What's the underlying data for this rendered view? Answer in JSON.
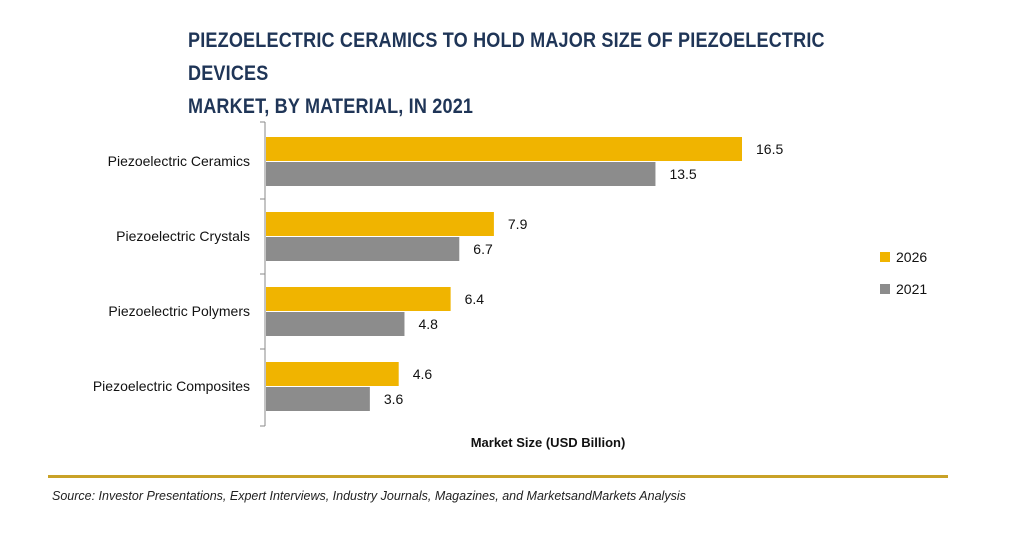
{
  "title_line1": "PIEZOELECTRIC CERAMICS TO HOLD MAJOR SIZE OF PIEZOELECTRIC DEVICES",
  "title_line2": "MARKET, BY MATERIAL, IN 2021",
  "source": "Source: Investor Presentations, Expert Interviews, Industry Journals, Magazines, and MarketsandMarkets Analysis",
  "colors": {
    "accent_2026": "#f0b400",
    "accent_2021": "#8c8c8c",
    "title": "#1f3557",
    "rule": "#c9a227"
  },
  "chart_data": {
    "type": "bar",
    "orientation": "horizontal",
    "title": "PIEZOELECTRIC CERAMICS TO HOLD MAJOR SIZE OF PIEZOELECTRIC DEVICES MARKET, BY MATERIAL, IN 2021",
    "xlabel": "Market Size (USD Billion)",
    "ylabel": "",
    "categories": [
      "Piezoelectric Ceramics",
      "Piezoelectric Crystals",
      "Piezoelectric Polymers",
      "Piezoelectric Composites"
    ],
    "series": [
      {
        "name": "2026",
        "color": "#f0b400",
        "values": [
          16.5,
          7.9,
          6.4,
          4.6
        ],
        "labels": [
          "16.5",
          "7.9",
          "6.4",
          "4.6"
        ]
      },
      {
        "name": "2021",
        "color": "#8c8c8c",
        "values": [
          13.5,
          6.7,
          4.8,
          3.6
        ],
        "labels": [
          "13.5",
          "6.7",
          "4.8",
          "3.6"
        ]
      }
    ],
    "xlim": [
      0,
      17
    ],
    "grid": false,
    "legend": "right"
  }
}
